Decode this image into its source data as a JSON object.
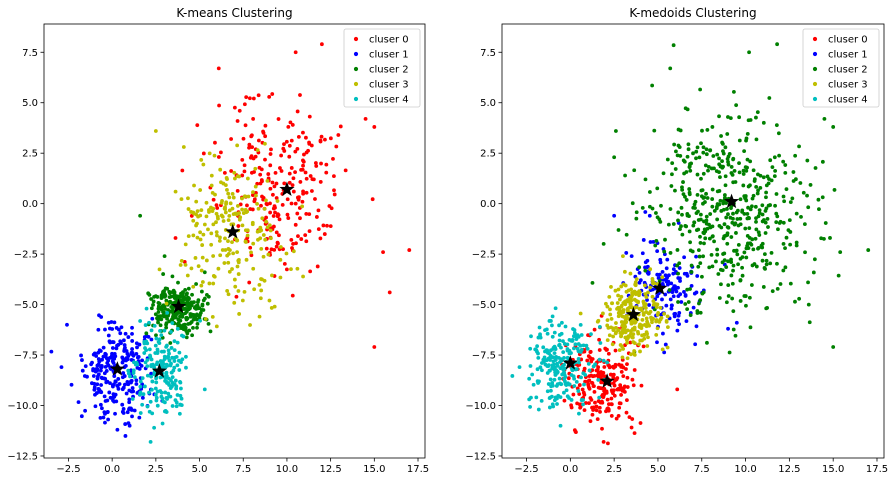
{
  "chart_data": [
    {
      "type": "scatter",
      "title": "K-means Clustering",
      "xlabel": "",
      "ylabel": "",
      "xlim": [
        -3.9,
        17.9
      ],
      "ylim": [
        -12.6,
        8.9
      ],
      "xticks": [
        -2.5,
        0.0,
        2.5,
        5.0,
        7.5,
        10.0,
        12.5,
        15.0,
        17.5
      ],
      "yticks": [
        -12.5,
        -10.0,
        -7.5,
        -5.0,
        -2.5,
        0.0,
        2.5,
        5.0,
        7.5
      ],
      "xtick_labels": [
        "−2.5",
        "0.0",
        "2.5",
        "5.0",
        "7.5",
        "10.0",
        "12.5",
        "15.0",
        "17.5"
      ],
      "ytick_labels": [
        "−12.5",
        "−10.0",
        "−7.5",
        "−5.0",
        "−2.5",
        "0.0",
        "2.5",
        "5.0",
        "7.5"
      ],
      "grid": false,
      "legend_position": "top-right",
      "series": [
        {
          "name": "cluser 0",
          "color": "#ff0000",
          "center": [
            9.5,
            0.8
          ],
          "spread": [
            1.9,
            2.1
          ],
          "count": 260,
          "extra_points": [
            [
              12,
              7.9
            ],
            [
              10.5,
              7.5
            ],
            [
              15.5,
              -2.4
            ],
            [
              17.0,
              -2.3
            ],
            [
              15.0,
              -7.1
            ],
            [
              14.5,
              4.2
            ],
            [
              15.0,
              3.8
            ],
            [
              6.1,
              6.7
            ]
          ]
        },
        {
          "name": "cluser 1",
          "color": "#0000ff",
          "center": [
            0.1,
            -8.3
          ],
          "spread": [
            1.05,
            1.25
          ],
          "count": 260,
          "extra_points": [
            [
              -2.9,
              -8.1
            ],
            [
              0.3,
              -11.2
            ],
            [
              1.0,
              -11.0
            ]
          ]
        },
        {
          "name": "cluser 2",
          "color": "#008000",
          "center": [
            3.8,
            -5.2
          ],
          "spread": [
            0.8,
            0.62
          ],
          "count": 260,
          "extra_points": [
            [
              1.6,
              -0.6
            ],
            [
              3.0,
              -2.6
            ],
            [
              5.3,
              -3.4
            ]
          ]
        },
        {
          "name": "cluser 3",
          "color": "#bfbf00",
          "center": [
            6.8,
            -1.4
          ],
          "spread": [
            1.45,
            1.8
          ],
          "count": 230,
          "extra_points": [
            [
              2.5,
              3.6
            ],
            [
              9.3,
              -5.1
            ],
            [
              9.0,
              -4.8
            ]
          ]
        },
        {
          "name": "cluser 4",
          "color": "#00bfbf",
          "center": [
            2.8,
            -8.4
          ],
          "spread": [
            0.85,
            1.15
          ],
          "count": 190,
          "extra_points": [
            [
              2.2,
              -11.8
            ],
            [
              5.3,
              -9.2
            ],
            [
              2.4,
              -11.1
            ]
          ]
        }
      ],
      "centroids": [
        [
          10.0,
          0.7
        ],
        [
          0.3,
          -8.2
        ],
        [
          3.8,
          -5.1
        ],
        [
          6.9,
          -1.4
        ],
        [
          2.7,
          -8.3
        ]
      ],
      "centroid_marker": "star",
      "centroid_color": "#000000"
    },
    {
      "type": "scatter",
      "title": "K-medoids Clustering",
      "xlabel": "",
      "ylabel": "",
      "xlim": [
        -3.9,
        17.9
      ],
      "ylim": [
        -12.6,
        8.9
      ],
      "xticks": [
        -2.5,
        0.0,
        2.5,
        5.0,
        7.5,
        10.0,
        12.5,
        15.0,
        17.5
      ],
      "yticks": [
        -12.5,
        -10.0,
        -7.5,
        -5.0,
        -2.5,
        0.0,
        2.5,
        5.0,
        7.5
      ],
      "xtick_labels": [
        "−2.5",
        "0.0",
        "2.5",
        "5.0",
        "7.5",
        "10.0",
        "12.5",
        "15.0",
        "17.5"
      ],
      "ytick_labels": [
        "−12.5",
        "−10.0",
        "−7.5",
        "−5.0",
        "−2.5",
        "0.0",
        "2.5",
        "5.0",
        "7.5"
      ],
      "grid": false,
      "legend_position": "top-right",
      "series": [
        {
          "name": "cluser 0",
          "color": "#ff0000",
          "center": [
            1.8,
            -8.8
          ],
          "spread": [
            0.95,
            1.15
          ],
          "count": 230,
          "extra_points": [
            [
              1.9,
              -11.8
            ],
            [
              0.3,
              -11.3
            ],
            [
              6.1,
              -9.2
            ]
          ]
        },
        {
          "name": "cluser 1",
          "color": "#0000ff",
          "center": [
            5.5,
            -3.8
          ],
          "spread": [
            1.0,
            1.2
          ],
          "count": 150,
          "extra_points": [
            [
              2.5,
              -0.6
            ],
            [
              9.5,
              -5.9
            ],
            [
              9.0,
              -6.2
            ],
            [
              3.5,
              -2.6
            ]
          ]
        },
        {
          "name": "cluser 2",
          "color": "#008000",
          "center": [
            9.3,
            -0.3
          ],
          "spread": [
            2.3,
            2.5
          ],
          "count": 520,
          "extra_points": [
            [
              11.8,
              7.9
            ],
            [
              10.2,
              7.5
            ],
            [
              17.0,
              -2.3
            ],
            [
              15.0,
              -7.1
            ],
            [
              5.7,
              6.7
            ],
            [
              14.5,
              4.2
            ],
            [
              15.0,
              3.8
            ],
            [
              15.4,
              -2.4
            ],
            [
              2.5,
              2.3
            ],
            [
              2.6,
              3.6
            ]
          ]
        },
        {
          "name": "cluser 3",
          "color": "#bfbf00",
          "center": [
            3.6,
            -5.6
          ],
          "spread": [
            0.85,
            0.95
          ],
          "count": 260,
          "extra_points": [
            [
              3.0,
              -2.6
            ],
            [
              1.6,
              -5.8
            ]
          ]
        },
        {
          "name": "cluser 4",
          "color": "#00bfbf",
          "center": [
            -0.5,
            -7.9
          ],
          "spread": [
            0.95,
            1.2
          ],
          "count": 230,
          "extra_points": [
            [
              -2.9,
              -8.1
            ],
            [
              -1.8,
              -10.2
            ]
          ]
        }
      ],
      "centroids": [
        [
          2.1,
          -8.8
        ],
        [
          5.1,
          -4.2
        ],
        [
          9.2,
          0.1
        ],
        [
          3.6,
          -5.5
        ],
        [
          0.0,
          -7.9
        ]
      ],
      "centroid_marker": "star",
      "centroid_color": "#000000"
    }
  ]
}
